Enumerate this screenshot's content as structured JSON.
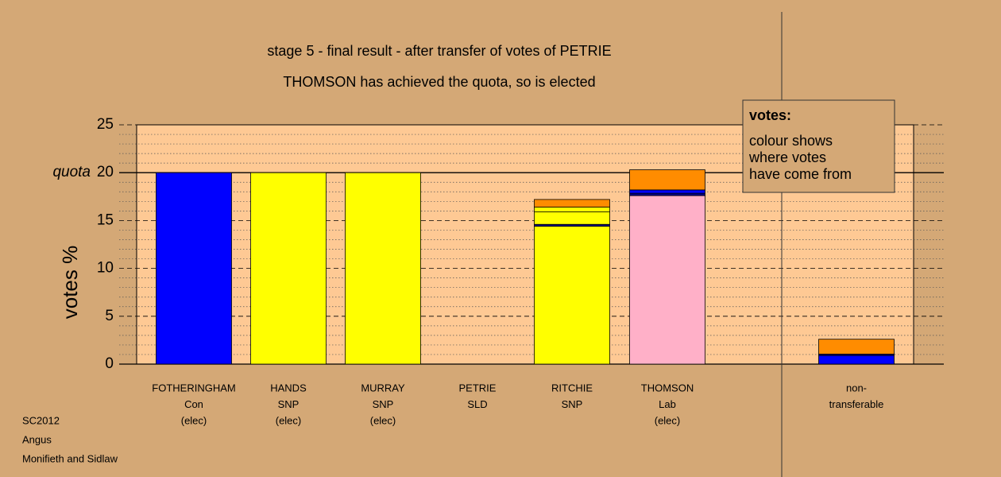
{
  "chart_data": {
    "type": "stacked-bar",
    "title": "stage 5 - final result - after transfer of votes of PETRIE",
    "subtitle": "THOMSON has achieved the quota, so is elected",
    "y_label": "votes %",
    "quota_label": "quota",
    "quota": 20,
    "ylim": [
      0,
      25
    ],
    "yticks": [
      0,
      5,
      10,
      15,
      20,
      25
    ],
    "minor_yticks": [
      1,
      2,
      3,
      4,
      6,
      7,
      8,
      9,
      11,
      12,
      13,
      14,
      16,
      17,
      18,
      19,
      21,
      22,
      23,
      24
    ],
    "bars": [
      {
        "labels": [
          "FOTHERINGHAM",
          "Con",
          "(elec)"
        ],
        "segments": [
          {
            "color": "#0000ff",
            "value": 20
          }
        ]
      },
      {
        "labels": [
          "HANDS",
          "SNP",
          "(elec)"
        ],
        "segments": [
          {
            "color": "#ffff00",
            "value": 20
          }
        ]
      },
      {
        "labels": [
          "MURRAY",
          "SNP",
          "(elec)"
        ],
        "segments": [
          {
            "color": "#ffff00",
            "value": 20
          }
        ]
      },
      {
        "labels": [
          "PETRIE",
          "SLD"
        ],
        "segments": [
          {
            "color": "#ff8c00",
            "value": 0
          }
        ]
      },
      {
        "labels": [
          "RITCHIE",
          "SNP"
        ],
        "segments": [
          {
            "color": "#ffff00",
            "value": 14.4
          },
          {
            "color": "#000080",
            "value": 0.2
          },
          {
            "color": "#ffff00",
            "value": 1.3
          },
          {
            "color": "#ffff00",
            "value": 0.5
          },
          {
            "color": "#ff8c00",
            "value": 0.8
          }
        ]
      },
      {
        "labels": [
          "THOMSON",
          "Lab",
          "(elec)"
        ],
        "segments": [
          {
            "color": "#ffb0c8",
            "value": 17.6
          },
          {
            "color": "#000080",
            "value": 0.25
          },
          {
            "color": "#0000ff",
            "value": 0.35
          },
          {
            "color": "#ff8c00",
            "value": 2.1
          }
        ]
      },
      {
        "labels": [
          "non-",
          "transferable"
        ],
        "segments": [
          {
            "color": "#0000ff",
            "value": 0.9
          },
          {
            "color": "#000080",
            "value": 0.15
          },
          {
            "color": "#ff8c00",
            "value": 1.55
          }
        ]
      }
    ],
    "note": {
      "heading": "votes:",
      "lines": [
        "colour shows",
        "where votes",
        "have come from"
      ]
    },
    "footer": [
      "SC2012",
      "Angus",
      "Monifieth and Sidlaw"
    ]
  }
}
